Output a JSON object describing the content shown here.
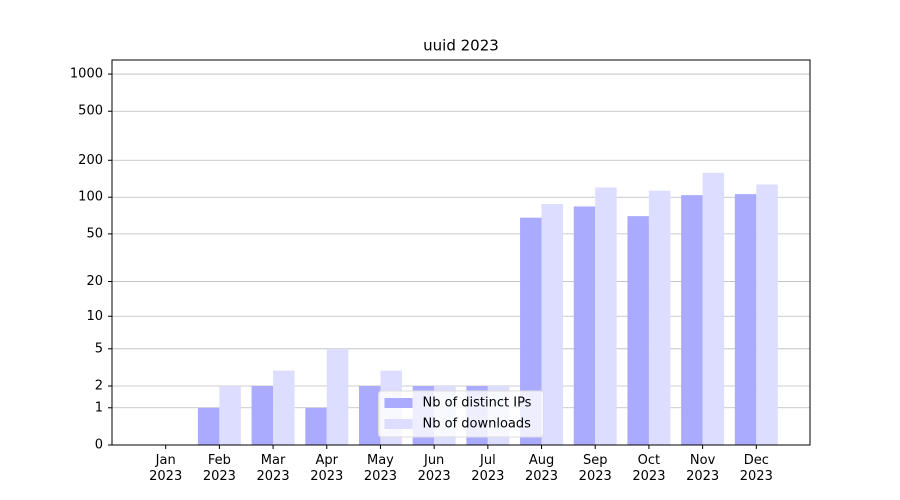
{
  "chart_data": {
    "type": "bar",
    "title": "uuid 2023",
    "categories": [
      "Jan\n2023",
      "Feb\n2023",
      "Mar\n2023",
      "Apr\n2023",
      "May\n2023",
      "Jun\n2023",
      "Jul\n2023",
      "Aug\n2023",
      "Sep\n2023",
      "Oct\n2023",
      "Nov\n2023",
      "Dec\n2023"
    ],
    "series": [
      {
        "name": "Nb of distinct IPs",
        "color": "#aaaaff",
        "values": [
          0,
          1,
          2,
          1,
          2,
          2,
          2,
          68,
          84,
          70,
          104,
          106
        ]
      },
      {
        "name": "Nb of downloads",
        "color": "#ddddff",
        "values": [
          0,
          2,
          3,
          5,
          3,
          2,
          2,
          88,
          120,
          113,
          158,
          127
        ]
      }
    ],
    "yscale": "log1p",
    "ylim": [
      0,
      1300
    ],
    "yticks": [
      0,
      1,
      2,
      5,
      10,
      20,
      50,
      100,
      200,
      500,
      1000
    ],
    "grid": true,
    "legend": "lower center"
  }
}
